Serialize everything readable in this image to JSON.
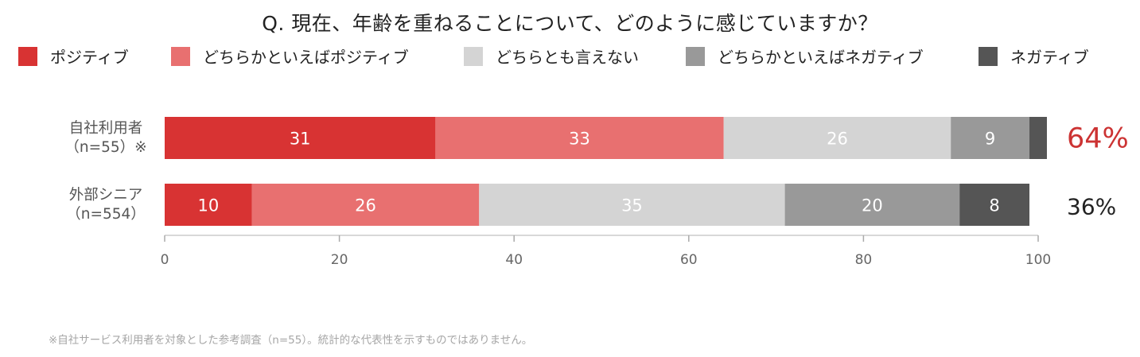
{
  "title": "Q. 現在、年齢を重ねることについて、どのように感じていますか？",
  "footnote": "※自社サービス利用者を対象とした参考調査（n=55）。統計的な代表性を示すものではありません。",
  "colors": {
    "positive": "#d83333",
    "somewhat_positive": "#e87070",
    "neutral": "#d4d4d4",
    "somewhat_negative": "#999999",
    "negative": "#555555",
    "highlight_total": "#cc3333",
    "axis": "#cccccc"
  },
  "chart_data": {
    "type": "bar",
    "orientation": "horizontal",
    "stacked": true,
    "title": "Q. 現在、年齢を重ねることについて、どのように感じていますか？",
    "categories": [
      {
        "line1": "自社利用者",
        "line2": "（n=55）※"
      },
      {
        "line1": "外部シニア",
        "line2": "（n=554）"
      }
    ],
    "series": [
      {
        "name": "ポジティブ",
        "color": "#d83333",
        "values": [
          31,
          10
        ]
      },
      {
        "name": "どちらかといえばポジティブ",
        "color": "#e87070",
        "values": [
          33,
          26
        ]
      },
      {
        "name": "どちらとも言えない",
        "color": "#d4d4d4",
        "values": [
          26,
          35
        ]
      },
      {
        "name": "どちらかといえばネガティブ",
        "color": "#999999",
        "values": [
          9,
          20
        ]
      },
      {
        "name": "ネガティブ",
        "color": "#555555",
        "values": [
          2,
          8
        ]
      }
    ],
    "data_labels_shown": [
      [
        true,
        true,
        true,
        true,
        false
      ],
      [
        true,
        true,
        true,
        true,
        true
      ]
    ],
    "totals": [
      {
        "text": "64%",
        "color": "#cc3333"
      },
      {
        "text": "36%",
        "color": "#222222"
      }
    ],
    "xlim": [
      0,
      100
    ],
    "xticks": [
      0,
      20,
      40,
      60,
      80,
      100
    ],
    "grid": false,
    "legend_position": "top"
  }
}
